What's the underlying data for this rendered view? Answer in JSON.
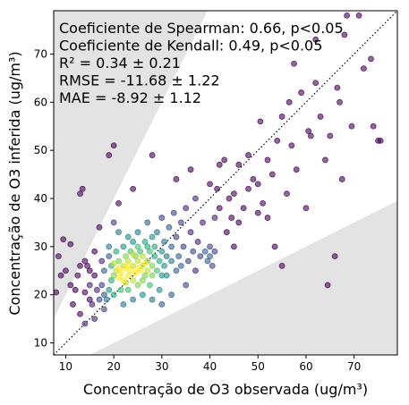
{
  "chart_data": {
    "type": "scatter",
    "title": "",
    "xlabel": "Concentração de O3 observada (ug/m³)",
    "ylabel": "Concentração de O3 inferida (ug/m³)",
    "xlim": [
      7.5,
      79
    ],
    "ylim": [
      7.5,
      79
    ],
    "xticks": [
      10,
      20,
      30,
      40,
      50,
      60,
      70
    ],
    "yticks": [
      10,
      20,
      30,
      40,
      50,
      60,
      70
    ],
    "grid": false,
    "legend": "none",
    "identity_line": {
      "style": "dotted",
      "color": "#000000"
    },
    "tolerance_band_slopes": [
      0.5,
      2.0
    ],
    "band_color": "#e3e3e3",
    "colormap": "viridis (point density)",
    "annotations": [
      "Coeficiente de Spearman: 0.66, p<0.05",
      "Coeficiente de Kendall: 0.49, p<0.05",
      "R² = 0.34 ± 0.21",
      "RMSE = -11.68 ± 1.22",
      "MAE = -8.92 ± 1.12"
    ],
    "points": [
      [
        8,
        20.5,
        0
      ],
      [
        9,
        24,
        0
      ],
      [
        9.5,
        31.5,
        0
      ],
      [
        8.5,
        28,
        0
      ],
      [
        10,
        25,
        0
      ],
      [
        11,
        22,
        0
      ],
      [
        11.5,
        18,
        0
      ],
      [
        12,
        21,
        0
      ],
      [
        12.5,
        24,
        0
      ],
      [
        11,
        30.5,
        0
      ],
      [
        13,
        26,
        0
      ],
      [
        13.5,
        42,
        0
      ],
      [
        13,
        41,
        0
      ],
      [
        14,
        27,
        0
      ],
      [
        14.5,
        26,
        0
      ],
      [
        15,
        25,
        0
      ],
      [
        14,
        20.5,
        0
      ],
      [
        15,
        19,
        0
      ],
      [
        15.5,
        18,
        0.1
      ],
      [
        16,
        24,
        0
      ],
      [
        16,
        29,
        0
      ],
      [
        16.5,
        21,
        0.1
      ],
      [
        17,
        19,
        0.2
      ],
      [
        17.5,
        27,
        0.1
      ],
      [
        17,
        34,
        0
      ],
      [
        17.5,
        22,
        0.2
      ],
      [
        18,
        20,
        0.3
      ],
      [
        18,
        25,
        0.3
      ],
      [
        18.5,
        19,
        0.4
      ],
      [
        19,
        21,
        0.5
      ],
      [
        19,
        28,
        0.3
      ],
      [
        19.5,
        23,
        0.6
      ],
      [
        19.5,
        26,
        0.6
      ],
      [
        20,
        24,
        0.8
      ],
      [
        20,
        20,
        0.6
      ],
      [
        20.5,
        25,
        0.9
      ],
      [
        20.5,
        29,
        0.6
      ],
      [
        20,
        35,
        0.2
      ],
      [
        21,
        23.5,
        1
      ],
      [
        21,
        27,
        0.8
      ],
      [
        21.5,
        24.5,
        1
      ],
      [
        21.5,
        21,
        0.7
      ],
      [
        22,
        26,
        0.9
      ],
      [
        22,
        23,
        1
      ],
      [
        22,
        30,
        0.5
      ],
      [
        22.5,
        25.5,
        1
      ],
      [
        22.5,
        28,
        0.8
      ],
      [
        23,
        24,
        1
      ],
      [
        23,
        27,
        0.9
      ],
      [
        23,
        21,
        0.7
      ],
      [
        23.5,
        25,
        1
      ],
      [
        23.5,
        29,
        0.7
      ],
      [
        24,
        26,
        0.9
      ],
      [
        24,
        23,
        0.9
      ],
      [
        24,
        31,
        0.5
      ],
      [
        24.5,
        28,
        0.8
      ],
      [
        24.5,
        24.5,
        1
      ],
      [
        25,
        27,
        0.9
      ],
      [
        25,
        22,
        0.8
      ],
      [
        25,
        33,
        0.4
      ],
      [
        25.5,
        25,
        1
      ],
      [
        25.5,
        29,
        0.7
      ],
      [
        26,
        26,
        0.9
      ],
      [
        26,
        28,
        0.9
      ],
      [
        26,
        23,
        0.8
      ],
      [
        26.5,
        31,
        0.6
      ],
      [
        26.5,
        24,
        0.8
      ],
      [
        27,
        27,
        0.8
      ],
      [
        27,
        25,
        0.9
      ],
      [
        27,
        35,
        0.3
      ],
      [
        27.5,
        29,
        0.7
      ],
      [
        27.5,
        22,
        0.7
      ],
      [
        28,
        26,
        0.8
      ],
      [
        28,
        32,
        0.5
      ],
      [
        28,
        24,
        0.8
      ],
      [
        28.5,
        28,
        0.6
      ],
      [
        28.5,
        30,
        0.6
      ],
      [
        29,
        25,
        0.7
      ],
      [
        29,
        33,
        0.4
      ],
      [
        29.5,
        27,
        0.6
      ],
      [
        29.5,
        21,
        0.5
      ],
      [
        30,
        29,
        0.5
      ],
      [
        30,
        36,
        0.2
      ],
      [
        30.5,
        26,
        0.5
      ],
      [
        30.5,
        31,
        0.4
      ],
      [
        31,
        28,
        0.4
      ],
      [
        31,
        24,
        0.5
      ],
      [
        31.5,
        34,
        0.3
      ],
      [
        32,
        27,
        0.4
      ],
      [
        32,
        30,
        0.3
      ],
      [
        32.5,
        37,
        0.2
      ],
      [
        33,
        25,
        0.3
      ],
      [
        33,
        32,
        0.2
      ],
      [
        33.5,
        28,
        0.3
      ],
      [
        34,
        35,
        0.2
      ],
      [
        34,
        26,
        0.3
      ],
      [
        34.5,
        30,
        0.2
      ],
      [
        35,
        22,
        0.2
      ],
      [
        35,
        38,
        0.1
      ],
      [
        35.5,
        27,
        0.2
      ],
      [
        36,
        33,
        0.1
      ],
      [
        36.5,
        29,
        0.2
      ],
      [
        37,
        25,
        0.1
      ],
      [
        37,
        40,
        0.1
      ],
      [
        37.5,
        31,
        0.1
      ],
      [
        38,
        28,
        0.2
      ],
      [
        38.5,
        35,
        0.1
      ],
      [
        39,
        29,
        0.3
      ],
      [
        39.5,
        27,
        0.3
      ],
      [
        40,
        28,
        0.3
      ],
      [
        40,
        30,
        0.2
      ],
      [
        40.5,
        26,
        0.2
      ],
      [
        41,
        36,
        0.1
      ],
      [
        41,
        29,
        0.2
      ],
      [
        41.5,
        42,
        0
      ],
      [
        42,
        38,
        0
      ],
      [
        42,
        47,
        0
      ],
      [
        43,
        48,
        0
      ],
      [
        43.5,
        33,
        0
      ],
      [
        44,
        40,
        0
      ],
      [
        44.5,
        36,
        0
      ],
      [
        45,
        41,
        0
      ],
      [
        45,
        30,
        0
      ],
      [
        46,
        47,
        0
      ],
      [
        46,
        35,
        0
      ],
      [
        47,
        38,
        0
      ],
      [
        48,
        49,
        0
      ],
      [
        48,
        42,
        0
      ],
      [
        49,
        44,
        0
      ],
      [
        50,
        43,
        0
      ],
      [
        50,
        37,
        0
      ],
      [
        50.5,
        56,
        0
      ],
      [
        51,
        39,
        0
      ],
      [
        52,
        48,
        0
      ],
      [
        52,
        36,
        0
      ],
      [
        53,
        45,
        0
      ],
      [
        53.5,
        30,
        0
      ],
      [
        54,
        52,
        0
      ],
      [
        55,
        57,
        0
      ],
      [
        55,
        26,
        0
      ],
      [
        56,
        41,
        0
      ],
      [
        56.5,
        60,
        0
      ],
      [
        57,
        51,
        0
      ],
      [
        57.5,
        68,
        0
      ],
      [
        58,
        46,
        0
      ],
      [
        59,
        62,
        0
      ],
      [
        60,
        38,
        0
      ],
      [
        60.5,
        54,
        0
      ],
      [
        61,
        53,
        0
      ],
      [
        62,
        64,
        0
      ],
      [
        62,
        73,
        0
      ],
      [
        63,
        57,
        0
      ],
      [
        64,
        48,
        0
      ],
      [
        64.5,
        22,
        0
      ],
      [
        65,
        53,
        0
      ],
      [
        66,
        28,
        0
      ],
      [
        66.5,
        63,
        0
      ],
      [
        67,
        60,
        0
      ],
      [
        67.5,
        44,
        0
      ],
      [
        68,
        74,
        0
      ],
      [
        68.5,
        78,
        0
      ],
      [
        69.5,
        55,
        0
      ],
      [
        71,
        78,
        0
      ],
      [
        72,
        67,
        0
      ],
      [
        73.5,
        69,
        0
      ],
      [
        74,
        55,
        0
      ],
      [
        75,
        52,
        0
      ],
      [
        75.5,
        52,
        0
      ],
      [
        14,
        14,
        0.1
      ],
      [
        16,
        15,
        0.1
      ],
      [
        18,
        17,
        0.2
      ],
      [
        13,
        16,
        0
      ],
      [
        15,
        22,
        0.1
      ],
      [
        19,
        49,
        0
      ],
      [
        20,
        51,
        0
      ],
      [
        21,
        39,
        0
      ],
      [
        24,
        42,
        0
      ],
      [
        28,
        49,
        0
      ],
      [
        33,
        44,
        0
      ],
      [
        36,
        46,
        0
      ],
      [
        40,
        43,
        0
      ],
      [
        22,
        18,
        0.4
      ],
      [
        24,
        19,
        0.4
      ],
      [
        26,
        20,
        0.5
      ],
      [
        28,
        19,
        0.4
      ],
      [
        30,
        18,
        0.3
      ],
      [
        32,
        20,
        0.3
      ],
      [
        30,
        24,
        0.5
      ],
      [
        27,
        30,
        0.6
      ],
      [
        25,
        30,
        0.7
      ],
      [
        23,
        32,
        0.5
      ],
      [
        21,
        33,
        0.4
      ],
      [
        19,
        30,
        0.4
      ],
      [
        24,
        28.5,
        0.9
      ],
      [
        26.5,
        26.5,
        1
      ],
      [
        25,
        25.5,
        1
      ],
      [
        23,
        26,
        1
      ],
      [
        22.5,
        22.5,
        0.9
      ],
      [
        21,
        25.5,
        1
      ],
      [
        20,
        26.5,
        0.9
      ]
    ]
  }
}
